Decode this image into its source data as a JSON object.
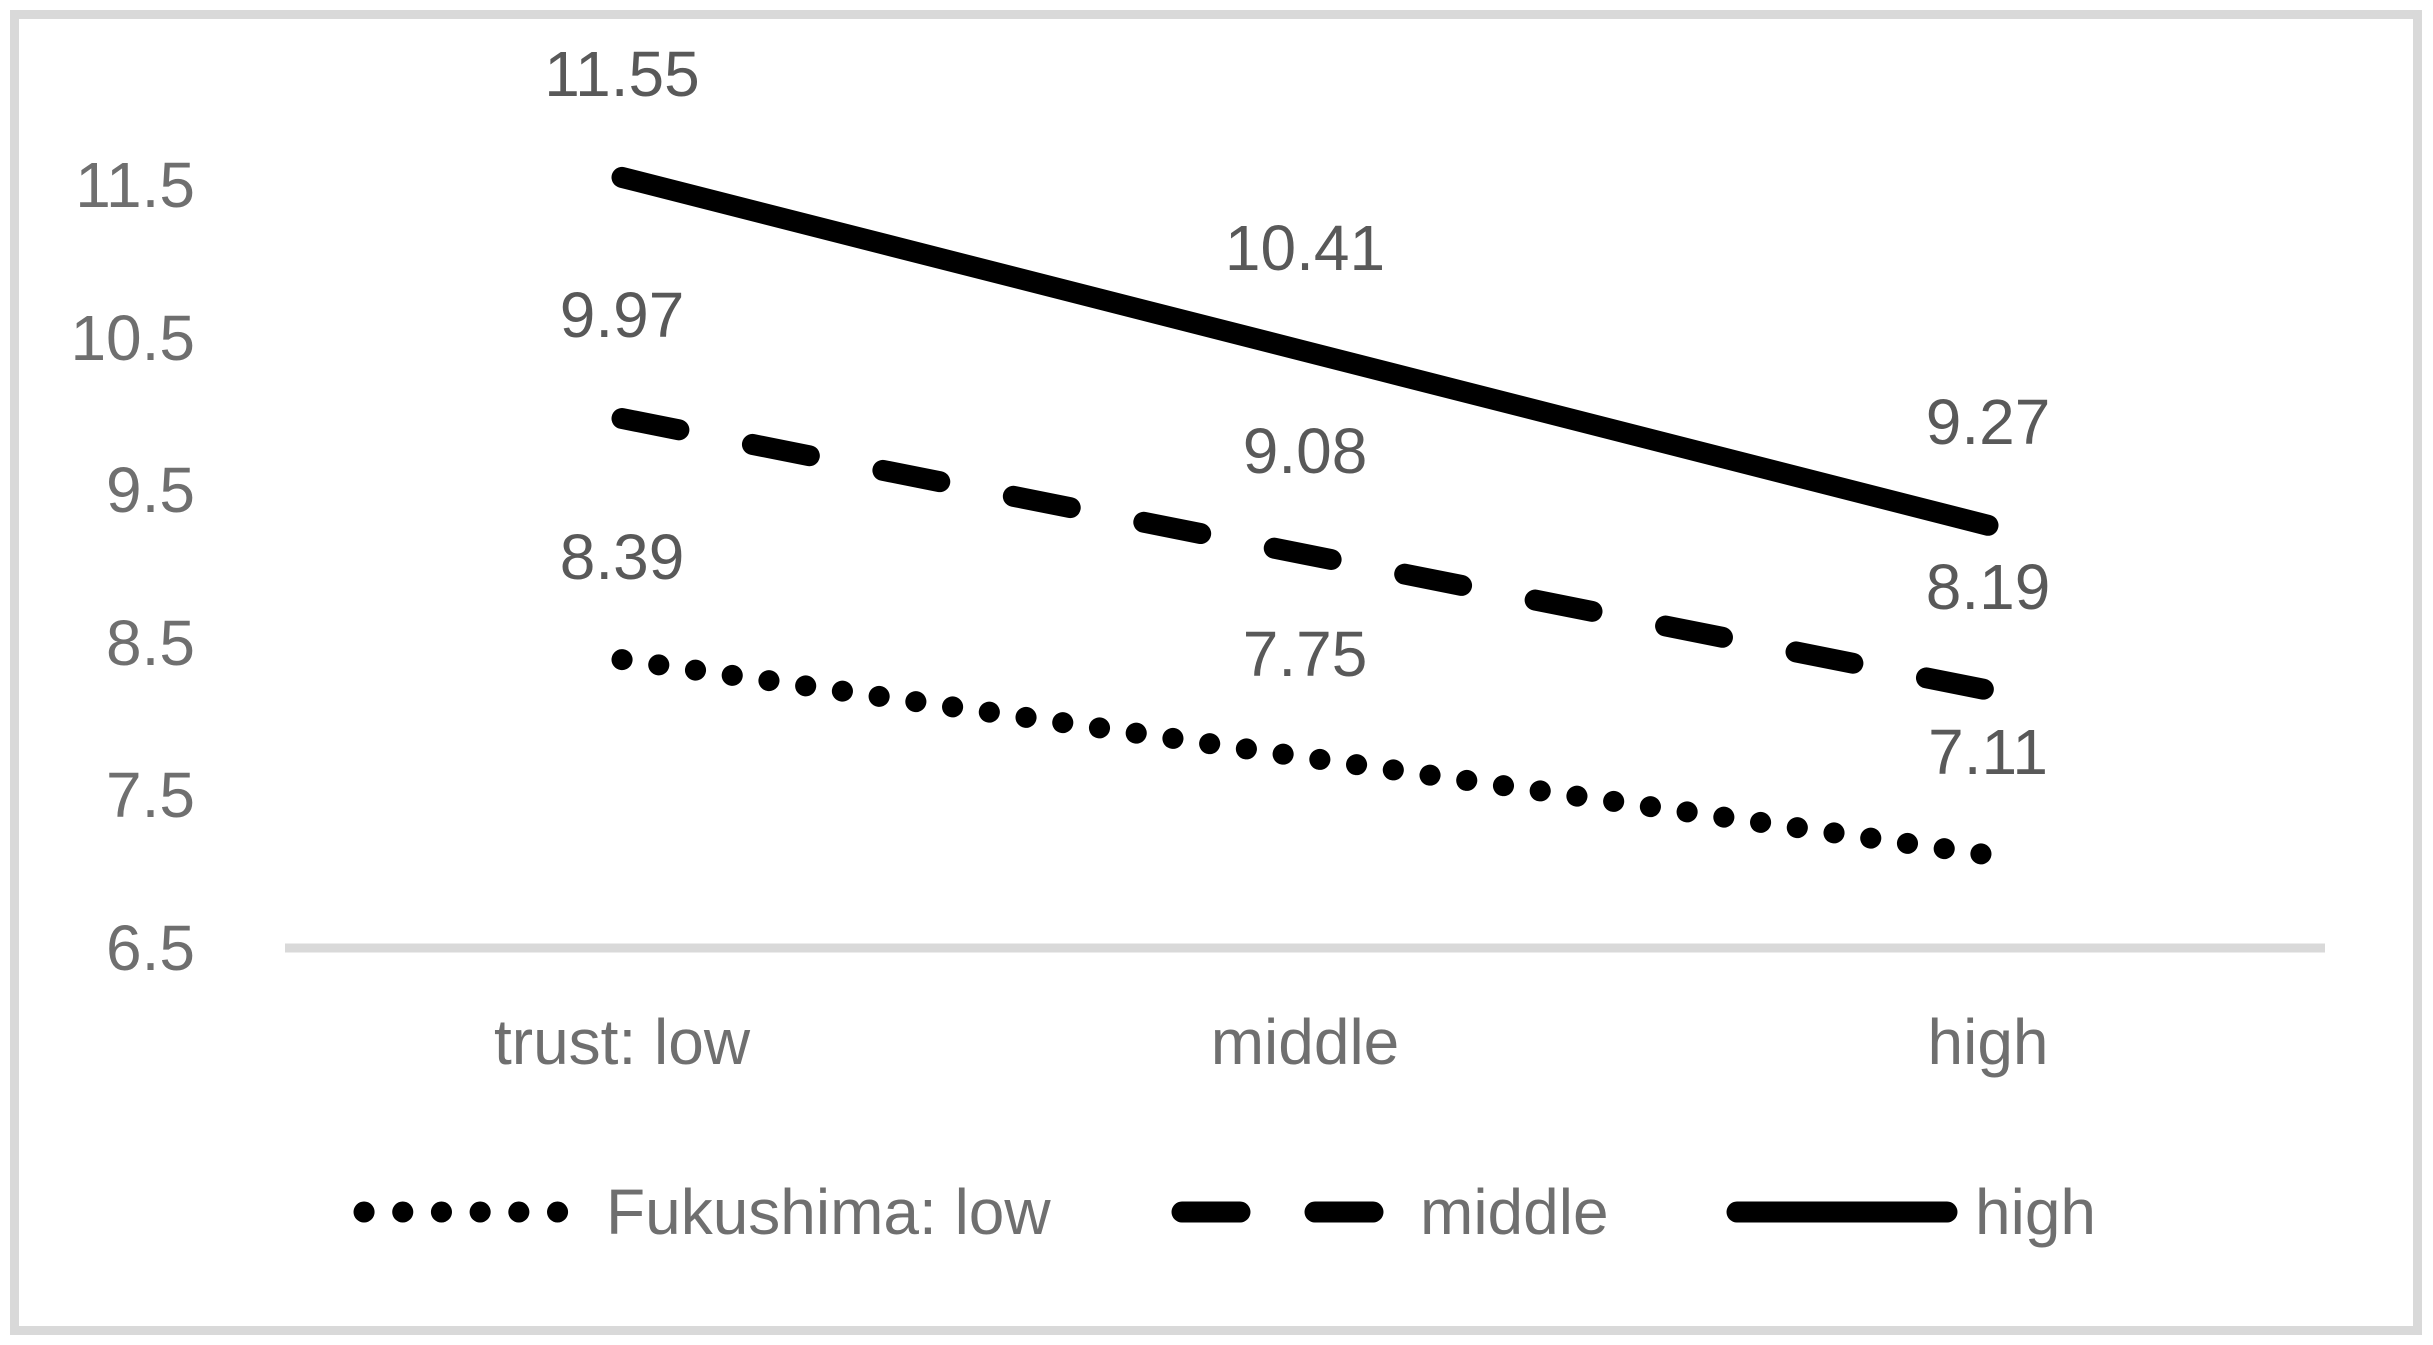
{
  "chart_data": {
    "type": "line",
    "title": "",
    "categories": [
      "trust: low",
      "middle",
      "high"
    ],
    "series": [
      {
        "name": "Fukushima: low",
        "style": "dotted",
        "values": [
          8.39,
          7.75,
          7.11
        ],
        "labels": [
          "8.39",
          "7.75",
          "7.11"
        ]
      },
      {
        "name": "middle",
        "style": "dashed",
        "values": [
          9.97,
          9.08,
          8.19
        ],
        "labels": [
          "9.97",
          "9.08",
          "8.19"
        ]
      },
      {
        "name": "high",
        "style": "solid",
        "values": [
          11.55,
          10.41,
          9.27
        ],
        "labels": [
          "11.55",
          "10.41",
          "9.27"
        ]
      }
    ],
    "y_ticks": [
      "11.5",
      "10.5",
      "9.5",
      "8.5",
      "7.5",
      "6.5"
    ],
    "ylim": [
      6.5,
      11.5
    ],
    "xlabel": "",
    "ylabel": "",
    "grid": false,
    "legend_position": "bottom",
    "line_color": "#000000",
    "axis_line_color": "#d9d9d9",
    "frame_color": "#d9d9d9",
    "data_label_color": "#595959",
    "axis_text_color": "#6f6f6f",
    "background_color": "#ffffff"
  }
}
